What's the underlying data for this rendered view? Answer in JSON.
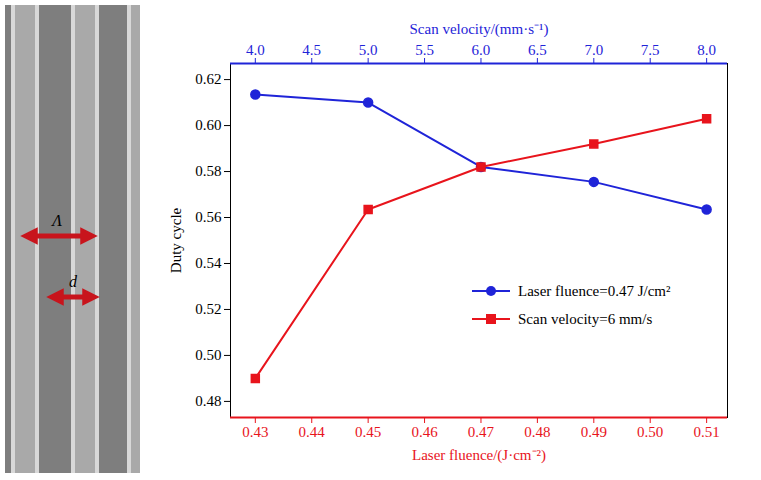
{
  "chart_data": {
    "type": "line",
    "ylabel": "Duty cycle",
    "xlabel": "Laser fluence/(J·cm⁻²)",
    "x2label": "Scan velocity/(mm·s⁻¹)",
    "xlim": [
      0.4256,
      0.5137
    ],
    "xticks": [
      0.43,
      0.44,
      0.45,
      0.46,
      0.47,
      0.48,
      0.49,
      {
        "value": 0.5,
        "label": "0.50"
      },
      0.51
    ],
    "x2lim": [
      3.78,
      8.185
    ],
    "x2ticks": [
      {
        "value": 4,
        "label": "4.0"
      },
      4.5,
      {
        "value": 5,
        "label": "5.0"
      },
      5.5,
      {
        "value": 6,
        "label": "6.0"
      },
      6.5,
      {
        "value": 7,
        "label": "7.0"
      },
      7.5,
      {
        "value": 8,
        "label": "8.0"
      }
    ],
    "ylim": [
      0.473,
      0.627
    ],
    "yticks": [
      0.48,
      {
        "value": 0.5,
        "label": "0.50"
      },
      0.52,
      0.54,
      0.56,
      0.58,
      {
        "value": 0.6,
        "label": "0.60"
      },
      0.62
    ],
    "legend": "lower right",
    "series": [
      {
        "name": "Laser fluence=0.47 J/cm²",
        "color": "#1f24d8",
        "marker": "circle",
        "axis": "x2",
        "x": [
          4.0,
          5.0,
          6.0,
          7.0,
          8.0
        ],
        "values": [
          0.6135,
          0.61,
          0.582,
          0.5755,
          0.5635
        ]
      },
      {
        "name": "Scan velocity=6 mm/s",
        "color": "#e8141c",
        "marker": "square",
        "x": [
          0.43,
          0.45,
          0.47,
          0.49,
          0.51
        ],
        "values": [
          0.49,
          0.5635,
          0.582,
          0.592,
          0.603
        ]
      }
    ]
  },
  "sem_image": {
    "labels": [
      "Λ",
      "d"
    ]
  }
}
